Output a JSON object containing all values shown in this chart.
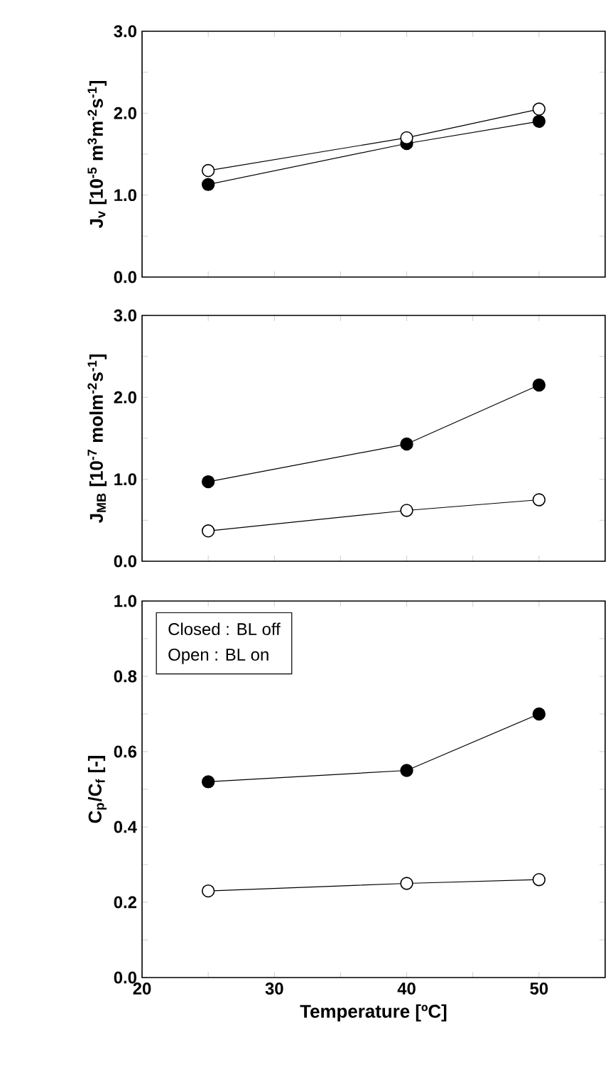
{
  "chart_data": [
    {
      "type": "line",
      "ylabel": "J$_{v}$ [10$^{-5}$ m$^{3}$m$^{-2}$s$^{-1}$]",
      "x": [
        25,
        40,
        50
      ],
      "xlim": [
        20,
        55
      ],
      "xticks": [
        20,
        {
          "value": 25,
          "label": null
        },
        30,
        {
          "value": 35,
          "label": null
        },
        40,
        {
          "value": 45,
          "label": null
        },
        50
      ],
      "ylim": [
        0,
        3
      ],
      "yticks": [
        {
          "value": 0,
          "label": "0.0"
        },
        {
          "value": 0.5,
          "label": null
        },
        {
          "value": 1,
          "label": "1.0"
        },
        {
          "value": 1.5,
          "label": null
        },
        {
          "value": 2,
          "label": "2.0"
        },
        {
          "value": 2.5,
          "label": null
        },
        {
          "value": 3,
          "label": "3.0"
        }
      ],
      "tick_labels": "y",
      "marker": "circle",
      "line_style": "solid",
      "series": [
        {
          "color": "#000000",
          "values": [
            1.13,
            1.63,
            1.9
          ]
        },
        {
          "color": "#ffffff",
          "values": [
            1.3,
            1.7,
            2.05
          ]
        }
      ]
    },
    {
      "type": "line",
      "ylabel": "J$_{MB}$ [10$^{-7}$ molm$^{-2}$s$^{-1}$]",
      "x": [
        25,
        40,
        50
      ],
      "xlim": [
        20,
        55
      ],
      "xticks": [
        20,
        {
          "value": 25,
          "label": null
        },
        30,
        {
          "value": 35,
          "label": null
        },
        40,
        {
          "value": 45,
          "label": null
        },
        50
      ],
      "ylim": [
        0,
        3
      ],
      "yticks": [
        {
          "value": 0,
          "label": "0.0"
        },
        {
          "value": 0.5,
          "label": null
        },
        {
          "value": 1,
          "label": "1.0"
        },
        {
          "value": 1.5,
          "label": null
        },
        {
          "value": 2,
          "label": "2.0"
        },
        {
          "value": 2.5,
          "label": null
        },
        {
          "value": 3,
          "label": "3.0"
        }
      ],
      "tick_labels": "y",
      "marker": "circle",
      "line_style": "solid",
      "series": [
        {
          "color": "#000000",
          "values": [
            0.97,
            1.43,
            2.15
          ]
        },
        {
          "color": "#ffffff",
          "values": [
            0.37,
            0.62,
            0.75
          ]
        }
      ]
    },
    {
      "type": "line",
      "ylabel": "C$_{p}$/C$_{f}$ [-]",
      "xlabel": "Temperature [ºC]",
      "annotations": [
        "Closed : BL off",
        "Open   : BL on"
      ],
      "x": [
        25,
        40,
        50
      ],
      "xlim": [
        20,
        55
      ],
      "xticks": [
        20,
        {
          "value": 25,
          "label": null
        },
        30,
        {
          "value": 35,
          "label": null
        },
        40,
        {
          "value": 45,
          "label": null
        },
        50
      ],
      "ylim": [
        0,
        1
      ],
      "yticks": [
        {
          "value": 0,
          "label": "0.0"
        },
        {
          "value": 0.1,
          "label": null
        },
        {
          "value": 0.2,
          "label": "0.2"
        },
        {
          "value": 0.3,
          "label": null
        },
        {
          "value": 0.4,
          "label": "0.4"
        },
        {
          "value": 0.5,
          "label": null
        },
        {
          "value": 0.6,
          "label": "0.6"
        },
        {
          "value": 0.7,
          "label": null
        },
        {
          "value": 0.8,
          "label": "0.8"
        },
        {
          "value": 0.9,
          "label": null
        },
        {
          "value": 1,
          "label": "1.0"
        }
      ],
      "marker": "circle",
      "line_style": "solid",
      "series": [
        {
          "color": "#000000",
          "values": [
            0.52,
            0.55,
            0.7
          ]
        },
        {
          "color": "#ffffff",
          "values": [
            0.23,
            0.25,
            0.26
          ]
        }
      ]
    }
  ]
}
